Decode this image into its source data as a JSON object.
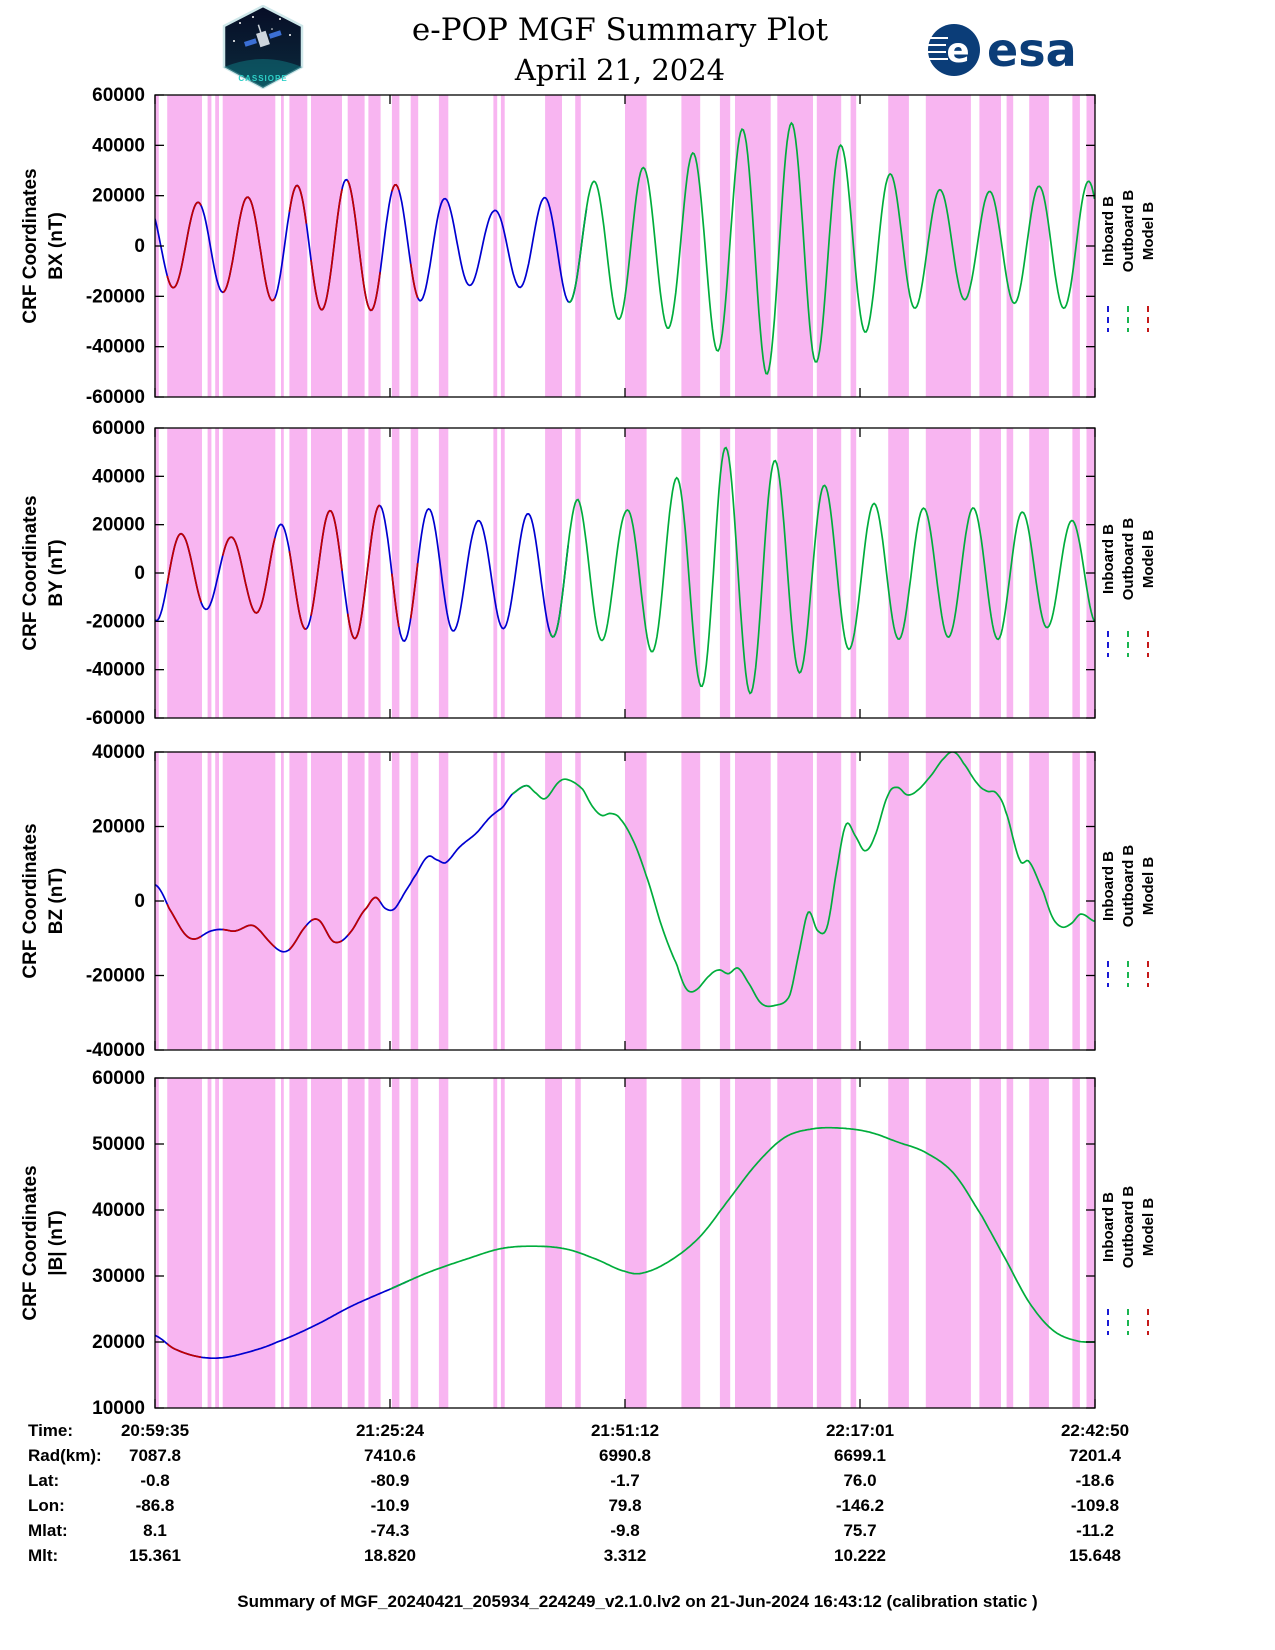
{
  "header": {
    "title_line1": "e-POP MGF Summary Plot",
    "title_line2": "April 21, 2024",
    "esa_logo_text": "esa",
    "esa_circle_letter": "e",
    "patch_text": "CASSIOPE"
  },
  "footer": {
    "summary": "Summary of MGF_20240421_205934_224249_v2.1.0.lv2 on 21-Jun-2024 16:43:12 (calibration static )"
  },
  "colors": {
    "inboard": "#0000d0",
    "outboard": "#00ad3c",
    "model": "#c00000",
    "band": "#f6a2ee",
    "band_opacity": 0.8,
    "esa_blue": "#0b3d78",
    "patch_teal": "#2fd1c8"
  },
  "legend": {
    "items": [
      {
        "label": "Inboard B",
        "series": "inboard",
        "color": "#0000d0"
      },
      {
        "label": "Outboard B",
        "series": "outboard",
        "color": "#00ad3c"
      },
      {
        "label": "Model B",
        "series": "model",
        "color": "#c00000"
      }
    ]
  },
  "bands": [
    [
      0.0,
      0.004
    ],
    [
      0.013,
      0.05
    ],
    [
      0.056,
      0.06
    ],
    [
      0.064,
      0.068
    ],
    [
      0.072,
      0.128
    ],
    [
      0.134,
      0.137
    ],
    [
      0.143,
      0.162
    ],
    [
      0.166,
      0.199
    ],
    [
      0.205,
      0.223
    ],
    [
      0.227,
      0.24
    ],
    [
      0.252,
      0.26
    ],
    [
      0.272,
      0.28
    ],
    [
      0.302,
      0.312
    ],
    [
      0.36,
      0.364
    ],
    [
      0.368,
      0.372
    ],
    [
      0.415,
      0.433
    ],
    [
      0.447,
      0.453
    ],
    [
      0.5,
      0.523
    ],
    [
      0.56,
      0.58
    ],
    [
      0.601,
      0.612
    ],
    [
      0.617,
      0.655
    ],
    [
      0.662,
      0.7
    ],
    [
      0.704,
      0.73
    ],
    [
      0.74,
      0.746
    ],
    [
      0.78,
      0.802
    ],
    [
      0.82,
      0.868
    ],
    [
      0.877,
      0.9
    ],
    [
      0.906,
      0.913
    ],
    [
      0.93,
      0.951
    ],
    [
      0.976,
      0.984
    ],
    [
      0.991,
      1.0
    ]
  ],
  "chart_data": {
    "type": "line",
    "title": "e-POP MGF Summary Plot, April 21, 2024",
    "xlabel": "Time",
    "x_tick_labels": [
      "20:59:35",
      "21:25:24",
      "21:51:12",
      "22:17:01",
      "22:42:50"
    ],
    "legend_position": "right-rotated",
    "grid": false,
    "panels": [
      {
        "id": "bx",
        "ylabel_line1": "CRF Coordinates",
        "ylabel_line2": "BX (nT)",
        "ylim": [
          -60000,
          60000
        ],
        "ytick_step": 20000,
        "model": {
          "kind": "spin",
          "frequency_cycles": 19,
          "phase": 2.4,
          "amplitude_envelope": [
            [
              0,
              16000
            ],
            [
              0.05,
              17500
            ],
            [
              0.1,
              19500
            ],
            [
              0.15,
              24000
            ],
            [
              0.2,
              26500
            ],
            [
              0.25,
              25000
            ],
            [
              0.3,
              20000
            ],
            [
              0.33,
              16000
            ],
            [
              0.36,
              14000
            ],
            [
              0.4,
              17500
            ],
            [
              0.45,
              23500
            ],
            [
              0.5,
              30000
            ],
            [
              0.55,
              33000
            ],
            [
              0.6,
              42000
            ],
            [
              0.65,
              51000
            ],
            [
              0.7,
              47000
            ],
            [
              0.73,
              40000
            ],
            [
              0.78,
              29000
            ],
            [
              0.82,
              23000
            ],
            [
              0.87,
              21000
            ],
            [
              0.92,
              23000
            ],
            [
              1,
              26000
            ]
          ]
        },
        "segments": [
          {
            "series": "inboard",
            "ranges": [
              [
                0,
                0.46
              ]
            ]
          },
          {
            "series": "model",
            "ranges": [
              [
                0.013,
                0.05
              ],
              [
                0.072,
                0.128
              ],
              [
                0.143,
                0.162
              ],
              [
                0.166,
                0.199
              ],
              [
                0.205,
                0.24
              ],
              [
                0.252,
                0.26
              ],
              [
                0.272,
                0.28
              ]
            ]
          },
          {
            "series": "outboard",
            "ranges": [
              [
                0.44,
                1
              ]
            ]
          }
        ]
      },
      {
        "id": "by",
        "ylabel_line1": "CRF Coordinates",
        "ylabel_line2": "BY (nT)",
        "ylim": [
          -60000,
          60000
        ],
        "ytick_step": 20000,
        "model": {
          "kind": "spin",
          "frequency_cycles": 19,
          "phase": -1.8,
          "amplitude_envelope": [
            [
              0,
              20000
            ],
            [
              0.03,
              16000
            ],
            [
              0.07,
              14500
            ],
            [
              0.1,
              15500
            ],
            [
              0.14,
              21000
            ],
            [
              0.18,
              25500
            ],
            [
              0.22,
              27500
            ],
            [
              0.26,
              28500
            ],
            [
              0.3,
              26000
            ],
            [
              0.34,
              21500
            ],
            [
              0.38,
              23500
            ],
            [
              0.42,
              26000
            ],
            [
              0.45,
              30500
            ],
            [
              0.5,
              25500
            ],
            [
              0.55,
              38000
            ],
            [
              0.6,
              52500
            ],
            [
              0.65,
              48500
            ],
            [
              0.7,
              38500
            ],
            [
              0.75,
              29500
            ],
            [
              0.8,
              27000
            ],
            [
              0.85,
              26500
            ],
            [
              0.9,
              27500
            ],
            [
              0.95,
              22500
            ],
            [
              1,
              21000
            ]
          ]
        },
        "segments": [
          {
            "series": "inboard",
            "ranges": [
              [
                0,
                0.44
              ]
            ]
          },
          {
            "series": "model",
            "ranges": [
              [
                0.013,
                0.05
              ],
              [
                0.072,
                0.128
              ],
              [
                0.143,
                0.162
              ],
              [
                0.166,
                0.199
              ],
              [
                0.205,
                0.24
              ],
              [
                0.252,
                0.26
              ],
              [
                0.272,
                0.28
              ]
            ]
          },
          {
            "series": "outboard",
            "ranges": [
              [
                0.42,
                1
              ]
            ]
          }
        ]
      },
      {
        "id": "bz",
        "ylabel_line1": "CRF Coordinates",
        "ylabel_line2": "BZ (nT)",
        "ylim": [
          -40000,
          40000
        ],
        "ytick_step": 20000,
        "model": {
          "kind": "curve",
          "points": [
            [
              0,
              3500
            ],
            [
              0.015,
              -3000
            ],
            [
              0.04,
              -9000
            ],
            [
              0.06,
              -9500
            ],
            [
              0.08,
              -7000
            ],
            [
              0.1,
              -6500
            ],
            [
              0.12,
              -11500
            ],
            [
              0.14,
              -12000
            ],
            [
              0.16,
              -8000
            ],
            [
              0.175,
              -6000
            ],
            [
              0.19,
              -9500
            ],
            [
              0.21,
              -8500
            ],
            [
              0.225,
              -3000
            ],
            [
              0.235,
              1500
            ],
            [
              0.245,
              -500
            ],
            [
              0.255,
              -1500
            ],
            [
              0.265,
              1000
            ],
            [
              0.275,
              5000
            ],
            [
              0.29,
              12500
            ],
            [
              0.3,
              12000
            ],
            [
              0.31,
              10500
            ],
            [
              0.325,
              14000
            ],
            [
              0.34,
              18000
            ],
            [
              0.355,
              22500
            ],
            [
              0.37,
              25000
            ],
            [
              0.38,
              28500
            ],
            [
              0.395,
              31000
            ],
            [
              0.405,
              29000
            ],
            [
              0.415,
              27500
            ],
            [
              0.43,
              32000
            ],
            [
              0.44,
              32500
            ],
            [
              0.455,
              30000
            ],
            [
              0.465,
              25500
            ],
            [
              0.475,
              23000
            ],
            [
              0.485,
              23500
            ],
            [
              0.495,
              22000
            ],
            [
              0.51,
              15500
            ],
            [
              0.525,
              5000
            ],
            [
              0.54,
              -7500
            ],
            [
              0.555,
              -17000
            ],
            [
              0.565,
              -23500
            ],
            [
              0.575,
              -24000
            ],
            [
              0.59,
              -20000
            ],
            [
              0.6,
              -18500
            ],
            [
              0.61,
              -19500
            ],
            [
              0.62,
              -18000
            ],
            [
              0.63,
              -21500
            ],
            [
              0.645,
              -27500
            ],
            [
              0.66,
              -28000
            ],
            [
              0.675,
              -25500
            ],
            [
              0.685,
              -14000
            ],
            [
              0.695,
              -3000
            ],
            [
              0.705,
              -8000
            ],
            [
              0.715,
              -7000
            ],
            [
              0.725,
              8000
            ],
            [
              0.735,
              20500
            ],
            [
              0.745,
              17500
            ],
            [
              0.755,
              13500
            ],
            [
              0.765,
              17000
            ],
            [
              0.78,
              28500
            ],
            [
              0.79,
              30500
            ],
            [
              0.8,
              28500
            ],
            [
              0.81,
              29500
            ],
            [
              0.825,
              33500
            ],
            [
              0.84,
              38500
            ],
            [
              0.85,
              40000
            ],
            [
              0.86,
              37000
            ],
            [
              0.875,
              31500
            ],
            [
              0.885,
              29500
            ],
            [
              0.895,
              29000
            ],
            [
              0.905,
              24000
            ],
            [
              0.92,
              11000
            ],
            [
              0.93,
              10500
            ],
            [
              0.945,
              2500
            ],
            [
              0.955,
              -4500
            ],
            [
              0.965,
              -7000
            ],
            [
              0.975,
              -6000
            ],
            [
              0.985,
              -3500
            ],
            [
              1,
              -5500
            ]
          ],
          "ripple": {
            "frequency_cycles": 19,
            "phase": 0.6,
            "amplitude_envelope": [
              [
                0,
                1500
              ],
              [
                0.25,
                1500
              ],
              [
                0.32,
                800
              ],
              [
                0.4,
                0
              ],
              [
                1,
                0
              ]
            ]
          }
        },
        "segments": [
          {
            "series": "inboard",
            "ranges": [
              [
                0,
                0.4
              ]
            ]
          },
          {
            "series": "model",
            "ranges": [
              [
                0.013,
                0.05
              ],
              [
                0.072,
                0.128
              ],
              [
                0.143,
                0.162
              ],
              [
                0.166,
                0.199
              ],
              [
                0.205,
                0.24
              ]
            ]
          },
          {
            "series": "outboard",
            "ranges": [
              [
                0.38,
                1
              ]
            ]
          }
        ]
      },
      {
        "id": "bmag",
        "ylabel_line1": "CRF Coordinates",
        "ylabel_line2": "|B| (nT)",
        "ylim": [
          10000,
          60000
        ],
        "ytick_step": 10000,
        "model": {
          "kind": "curve",
          "points": [
            [
              0,
              21000
            ],
            [
              0.02,
              19000
            ],
            [
              0.045,
              17800
            ],
            [
              0.07,
              17600
            ],
            [
              0.1,
              18500
            ],
            [
              0.13,
              20000
            ],
            [
              0.17,
              22500
            ],
            [
              0.21,
              25500
            ],
            [
              0.25,
              28000
            ],
            [
              0.29,
              30500
            ],
            [
              0.33,
              32500
            ],
            [
              0.37,
              34200
            ],
            [
              0.41,
              34500
            ],
            [
              0.44,
              34000
            ],
            [
              0.47,
              32500
            ],
            [
              0.5,
              30700
            ],
            [
              0.52,
              30500
            ],
            [
              0.55,
              32500
            ],
            [
              0.58,
              36000
            ],
            [
              0.61,
              41500
            ],
            [
              0.64,
              47000
            ],
            [
              0.67,
              51000
            ],
            [
              0.7,
              52300
            ],
            [
              0.73,
              52400
            ],
            [
              0.76,
              51800
            ],
            [
              0.79,
              50300
            ],
            [
              0.82,
              48700
            ],
            [
              0.85,
              45500
            ],
            [
              0.88,
              39000
            ],
            [
              0.905,
              32500
            ],
            [
              0.93,
              26000
            ],
            [
              0.955,
              21800
            ],
            [
              0.98,
              20200
            ],
            [
              1,
              20000
            ]
          ]
        },
        "segments": [
          {
            "series": "inboard",
            "ranges": [
              [
                0,
                0.27
              ]
            ]
          },
          {
            "series": "model",
            "ranges": [
              [
                0.013,
                0.05
              ]
            ]
          },
          {
            "series": "outboard",
            "ranges": [
              [
                0.25,
                1
              ]
            ]
          }
        ]
      }
    ]
  },
  "table": {
    "rows": [
      {
        "label": "Time:",
        "values": [
          "20:59:35",
          "21:25:24",
          "21:51:12",
          "22:17:01",
          "22:42:50"
        ]
      },
      {
        "label": "Rad(km):",
        "values": [
          "7087.8",
          "7410.6",
          "6990.8",
          "6699.1",
          "7201.4"
        ]
      },
      {
        "label": "Lat:",
        "values": [
          "-0.8",
          "-80.9",
          "-1.7",
          "76.0",
          "-18.6"
        ]
      },
      {
        "label": "Lon:",
        "values": [
          "-86.8",
          "-10.9",
          "79.8",
          "-146.2",
          "-109.8"
        ]
      },
      {
        "label": "Mlat:",
        "values": [
          "8.1",
          "-74.3",
          "-9.8",
          "75.7",
          "-11.2"
        ]
      },
      {
        "label": "Mlt:",
        "values": [
          "15.361",
          "18.820",
          "3.312",
          "10.222",
          "15.648"
        ]
      }
    ]
  }
}
